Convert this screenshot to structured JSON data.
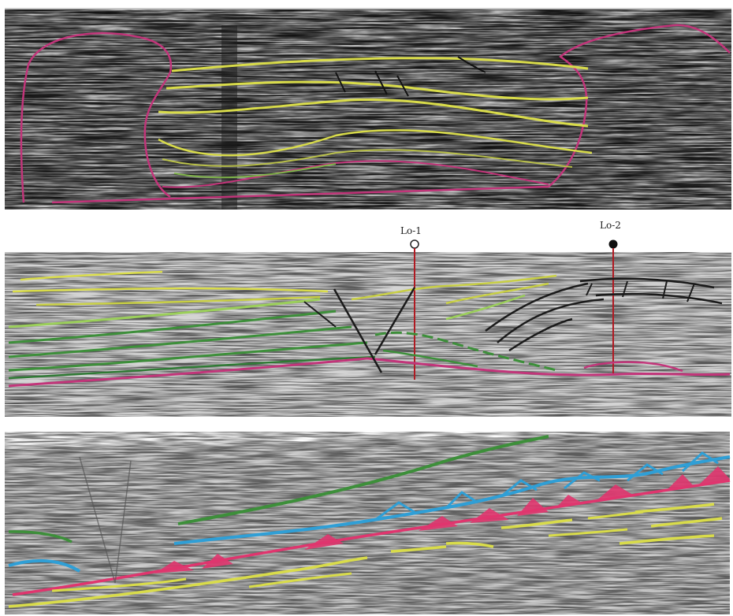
{
  "colors": {
    "yellow_horizon": "#d9dc4a",
    "pink_boundary": "#c2357a",
    "green_horizon": "#3d8f3a",
    "light_green_horizon": "#9bcf5a",
    "blue_horizon": "#2f9fd6",
    "pink_fill": "#e0356e",
    "fault_black": "#1a1a1a",
    "well_red": "#b01a22",
    "seismic_dark": "#2b2b2b",
    "seismic_light": "#b8b8b8"
  },
  "panels": [
    {
      "id": "top",
      "description_icons": [
        "salt-dome-outline"
      ]
    },
    {
      "id": "middle",
      "wells": [
        {
          "label": "Lo-1",
          "symbol": "open-circle"
        },
        {
          "label": "Lo-2",
          "symbol": "filled-circle"
        }
      ]
    },
    {
      "id": "bottom"
    }
  ]
}
